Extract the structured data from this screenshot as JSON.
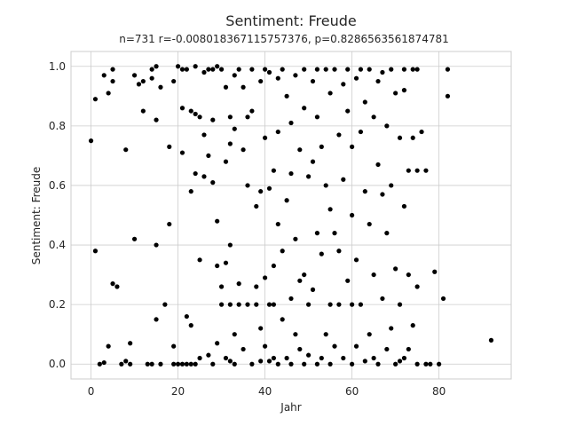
{
  "chart_data": {
    "type": "scatter",
    "title": "Sentiment: Freude",
    "subtitle": "n=731 r=-0.008018367115757376, p=0.8286563561874781",
    "xlabel": "Jahr",
    "ylabel": "Sentiment: Freude",
    "xlim": [
      -4.6,
      96.6
    ],
    "ylim": [
      -0.05,
      1.05
    ],
    "x_ticks": [
      0,
      20,
      40,
      60,
      80
    ],
    "y_ticks": [
      0.0,
      0.2,
      0.4,
      0.6,
      0.8,
      1.0
    ],
    "y_tick_labels": [
      "0.0",
      "0.2",
      "0.4",
      "0.6",
      "0.8",
      "1.0"
    ],
    "grid": true,
    "point_color": "#000000",
    "points": [
      [
        0,
        0.75
      ],
      [
        1,
        0.89
      ],
      [
        1,
        0.38
      ],
      [
        2,
        0
      ],
      [
        3,
        0.005
      ],
      [
        3,
        0.97
      ],
      [
        4,
        0.91
      ],
      [
        4,
        0.06
      ],
      [
        5,
        0.99
      ],
      [
        5,
        0.95
      ],
      [
        5,
        0.27
      ],
      [
        6,
        0.26
      ],
      [
        7,
        0
      ],
      [
        8,
        0.01
      ],
      [
        8,
        0.72
      ],
      [
        9,
        0
      ],
      [
        9,
        0.07
      ],
      [
        10,
        0.42
      ],
      [
        10,
        0.97
      ],
      [
        11,
        0.94
      ],
      [
        12,
        0.95
      ],
      [
        12,
        0.85
      ],
      [
        13,
        0
      ],
      [
        14,
        0
      ],
      [
        14,
        0.99
      ],
      [
        14,
        0.96
      ],
      [
        15,
        1.0
      ],
      [
        15,
        0.82
      ],
      [
        15,
        0.4
      ],
      [
        15,
        0.15
      ],
      [
        16,
        0
      ],
      [
        16,
        0.93
      ],
      [
        17,
        0.2
      ],
      [
        18,
        0.47
      ],
      [
        18,
        0.73
      ],
      [
        19,
        0
      ],
      [
        19,
        0.06
      ],
      [
        19,
        0.95
      ],
      [
        20,
        1.0
      ],
      [
        20,
        0
      ],
      [
        21,
        0.99
      ],
      [
        21,
        0.86
      ],
      [
        21,
        0.71
      ],
      [
        21,
        0
      ],
      [
        22,
        0.16
      ],
      [
        22,
        0.99
      ],
      [
        22,
        0
      ],
      [
        23,
        0.85
      ],
      [
        23,
        0.58
      ],
      [
        23,
        0.13
      ],
      [
        23,
        0
      ],
      [
        24,
        0.84
      ],
      [
        24,
        1.0
      ],
      [
        24,
        0.64
      ],
      [
        24,
        0
      ],
      [
        25,
        0.35
      ],
      [
        25,
        0.83
      ],
      [
        25,
        0.02
      ],
      [
        26,
        0.98
      ],
      [
        26,
        0.63
      ],
      [
        26,
        0.77
      ],
      [
        27,
        0.99
      ],
      [
        27,
        0.7
      ],
      [
        27,
        0.03
      ],
      [
        28,
        0
      ],
      [
        28,
        0.61
      ],
      [
        28,
        0.99
      ],
      [
        28,
        0.82
      ],
      [
        29,
        0.48
      ],
      [
        29,
        1.0
      ],
      [
        29,
        0.07
      ],
      [
        29,
        0.33
      ],
      [
        30,
        0.99
      ],
      [
        30,
        0.26
      ],
      [
        30,
        0.2
      ],
      [
        31,
        0.93
      ],
      [
        31,
        0.34
      ],
      [
        31,
        0.68
      ],
      [
        31,
        0.02
      ],
      [
        32,
        0.4
      ],
      [
        32,
        0.83
      ],
      [
        32,
        0.01
      ],
      [
        32,
        0.74
      ],
      [
        32,
        0.2
      ],
      [
        33,
        0.97
      ],
      [
        33,
        0.79
      ],
      [
        33,
        0.1
      ],
      [
        33,
        0
      ],
      [
        34,
        0.99
      ],
      [
        34,
        0.27
      ],
      [
        34,
        0.2
      ],
      [
        35,
        0.72
      ],
      [
        35,
        0.93
      ],
      [
        35,
        0.05
      ],
      [
        36,
        0.83
      ],
      [
        36,
        0.6
      ],
      [
        36,
        0.2
      ],
      [
        37,
        0.85
      ],
      [
        37,
        0
      ],
      [
        37,
        0.99
      ],
      [
        38,
        0.53
      ],
      [
        38,
        0.26
      ],
      [
        38,
        0.2
      ],
      [
        39,
        0.95
      ],
      [
        39,
        0.12
      ],
      [
        39,
        0.58
      ],
      [
        39,
        0.01
      ],
      [
        40,
        0.99
      ],
      [
        40,
        0.76
      ],
      [
        40,
        0.29
      ],
      [
        40,
        0.06
      ],
      [
        41,
        0.98
      ],
      [
        41,
        0.59
      ],
      [
        41,
        0.2
      ],
      [
        41,
        0.01
      ],
      [
        42,
        0.65
      ],
      [
        42,
        0.33
      ],
      [
        42,
        0.2
      ],
      [
        42,
        0.02
      ],
      [
        43,
        0.96
      ],
      [
        43,
        0.78
      ],
      [
        43,
        0.47
      ],
      [
        43,
        0
      ],
      [
        44,
        0.99
      ],
      [
        44,
        0.38
      ],
      [
        44,
        0.15
      ],
      [
        45,
        0.9
      ],
      [
        45,
        0.55
      ],
      [
        45,
        0.02
      ],
      [
        46,
        0.81
      ],
      [
        46,
        0.64
      ],
      [
        46,
        0.22
      ],
      [
        46,
        0
      ],
      [
        47,
        0.97
      ],
      [
        47,
        0.42
      ],
      [
        47,
        0.1
      ],
      [
        48,
        0.72
      ],
      [
        48,
        0.28
      ],
      [
        48,
        0.05
      ],
      [
        49,
        0.99
      ],
      [
        49,
        0.86
      ],
      [
        49,
        0.3
      ],
      [
        49,
        0
      ],
      [
        50,
        0.63
      ],
      [
        50,
        0.2
      ],
      [
        50,
        0.03
      ],
      [
        51,
        0.95
      ],
      [
        51,
        0.68
      ],
      [
        51,
        0.25
      ],
      [
        52,
        0.99
      ],
      [
        52,
        0.83
      ],
      [
        52,
        0.44
      ],
      [
        52,
        0
      ],
      [
        53,
        0.73
      ],
      [
        53,
        0.37
      ],
      [
        53,
        0.02
      ],
      [
        54,
        0.99
      ],
      [
        54,
        0.6
      ],
      [
        54,
        0.1
      ],
      [
        55,
        0.91
      ],
      [
        55,
        0.52
      ],
      [
        55,
        0.2
      ],
      [
        55,
        0
      ],
      [
        56,
        0.99
      ],
      [
        56,
        0.44
      ],
      [
        56,
        0.06
      ],
      [
        57,
        0.77
      ],
      [
        57,
        0.38
      ],
      [
        57,
        0.2
      ],
      [
        58,
        0.94
      ],
      [
        58,
        0.62
      ],
      [
        58,
        0.02
      ],
      [
        59,
        0.99
      ],
      [
        59,
        0.85
      ],
      [
        59,
        0.28
      ],
      [
        60,
        0.73
      ],
      [
        60,
        0.5
      ],
      [
        60,
        0.2
      ],
      [
        60,
        0
      ],
      [
        61,
        0.96
      ],
      [
        61,
        0.35
      ],
      [
        61,
        0.06
      ],
      [
        62,
        0.99
      ],
      [
        62,
        0.78
      ],
      [
        62,
        0.2
      ],
      [
        63,
        0.88
      ],
      [
        63,
        0.58
      ],
      [
        63,
        0.01
      ],
      [
        64,
        0.99
      ],
      [
        64,
        0.47
      ],
      [
        64,
        0.1
      ],
      [
        65,
        0.83
      ],
      [
        65,
        0.3
      ],
      [
        65,
        0.02
      ],
      [
        66,
        0.95
      ],
      [
        66,
        0.67
      ],
      [
        66,
        0
      ],
      [
        67,
        0.98
      ],
      [
        67,
        0.57
      ],
      [
        67,
        0.22
      ],
      [
        68,
        0.8
      ],
      [
        68,
        0.44
      ],
      [
        68,
        0.05
      ],
      [
        69,
        0.99
      ],
      [
        69,
        0.6
      ],
      [
        69,
        0.12
      ],
      [
        70,
        0.91
      ],
      [
        70,
        0.32
      ],
      [
        70,
        0
      ],
      [
        71,
        0.76
      ],
      [
        71,
        0.2
      ],
      [
        71,
        0.01
      ],
      [
        72,
        0.99
      ],
      [
        72,
        0.92
      ],
      [
        72,
        0.53
      ],
      [
        72,
        0.02
      ],
      [
        73,
        0.65
      ],
      [
        73,
        0.3
      ],
      [
        73,
        0.05
      ],
      [
        74,
        0.99
      ],
      [
        74,
        0.76
      ],
      [
        74,
        0.13
      ],
      [
        75,
        0.99
      ],
      [
        75,
        0.65
      ],
      [
        75,
        0.26
      ],
      [
        75,
        0
      ],
      [
        76,
        0.78
      ],
      [
        77,
        0.65
      ],
      [
        77,
        0
      ],
      [
        78,
        0
      ],
      [
        79,
        0.31
      ],
      [
        80,
        0
      ],
      [
        81,
        0.22
      ],
      [
        82,
        0.99
      ],
      [
        82,
        0.9
      ],
      [
        92,
        0.08
      ]
    ]
  }
}
